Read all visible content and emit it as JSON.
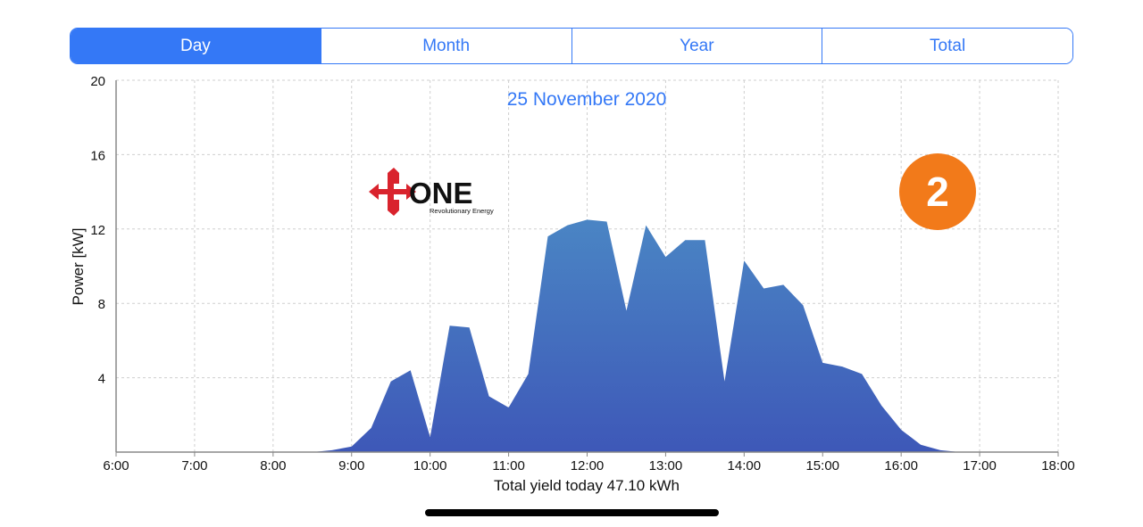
{
  "tabs": [
    {
      "label": "Day",
      "active": true
    },
    {
      "label": "Month",
      "active": false
    },
    {
      "label": "Year",
      "active": false
    },
    {
      "label": "Total",
      "active": false
    }
  ],
  "logo": {
    "text": "ONE",
    "tagline": "Revolutionary Energy"
  },
  "badge": {
    "text": "2",
    "color": "#f27a1a"
  },
  "colors": {
    "accent": "#3478f6",
    "area_top": "#4a85c4",
    "area_bottom": "#3e58b8"
  },
  "chart_data": {
    "type": "area",
    "title": "25 November 2020",
    "xlabel": "Total yield today 47.10 kWh",
    "ylabel": "Power [kW]",
    "xlim": [
      6,
      18
    ],
    "ylim": [
      0,
      20
    ],
    "x_ticks": [
      "6:00",
      "7:00",
      "8:00",
      "9:00",
      "10:00",
      "11:00",
      "12:00",
      "13:00",
      "14:00",
      "15:00",
      "16:00",
      "17:00",
      "18:00"
    ],
    "y_ticks": [
      "4",
      "8",
      "12",
      "16",
      "20"
    ],
    "grid": true,
    "x": [
      6.0,
      8.5,
      8.75,
      9.0,
      9.25,
      9.5,
      9.75,
      10.0,
      10.25,
      10.5,
      10.75,
      11.0,
      11.25,
      11.5,
      11.75,
      12.0,
      12.25,
      12.5,
      12.75,
      13.0,
      13.25,
      13.5,
      13.75,
      14.0,
      14.25,
      14.5,
      14.75,
      15.0,
      15.25,
      15.5,
      15.75,
      16.0,
      16.25,
      16.5,
      16.75,
      17.0,
      18.0
    ],
    "values": [
      0,
      0,
      0.1,
      0.3,
      1.3,
      3.8,
      4.4,
      0.8,
      6.8,
      6.7,
      3.0,
      2.4,
      4.2,
      11.6,
      12.2,
      12.5,
      12.4,
      7.6,
      12.2,
      10.5,
      11.4,
      11.4,
      3.8,
      10.3,
      8.8,
      9.0,
      7.9,
      4.8,
      4.6,
      4.2,
      2.5,
      1.2,
      0.4,
      0.1,
      0,
      0,
      0
    ]
  }
}
